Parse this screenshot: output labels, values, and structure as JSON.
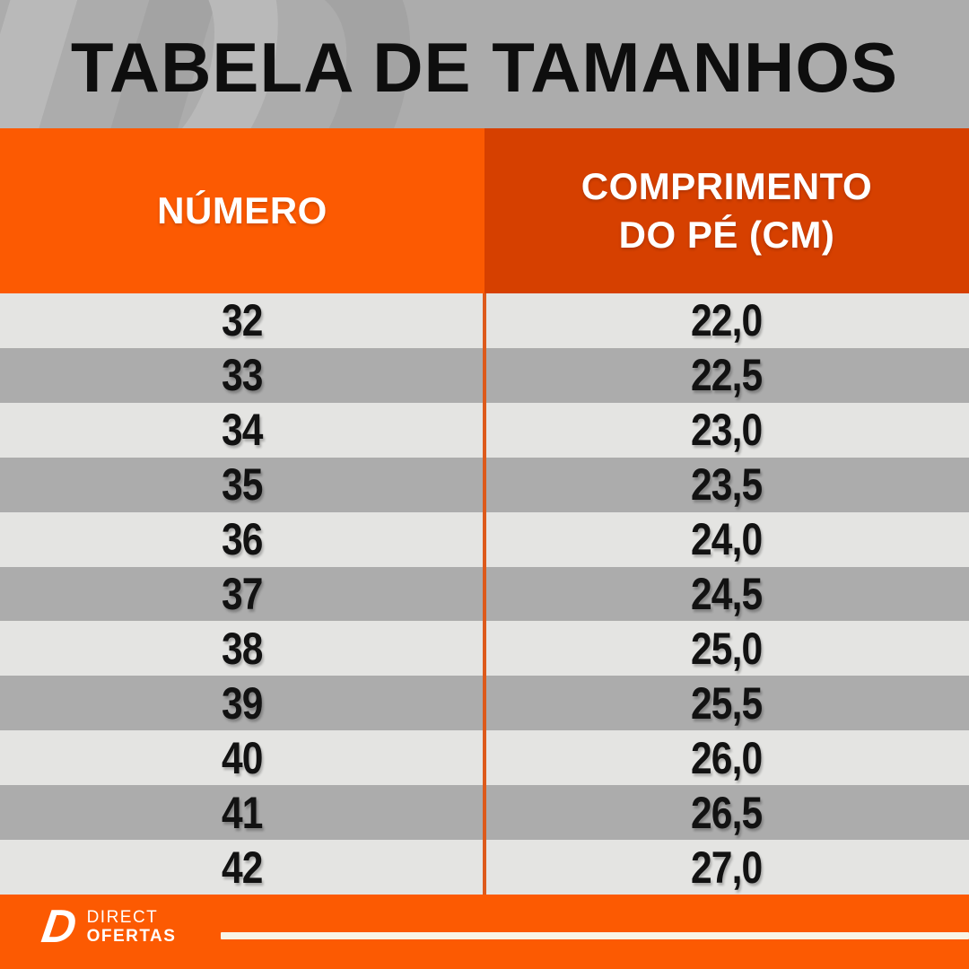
{
  "title": "TABELA DE TAMANHOS",
  "watermark_glyph": "D",
  "header": {
    "col1": "NÚMERO",
    "col2_line1": "COMPRIMENTO",
    "col2_line2": "DO PÉ (CM)"
  },
  "rows": [
    {
      "numero": "32",
      "cm": "22,0"
    },
    {
      "numero": "33",
      "cm": "22,5"
    },
    {
      "numero": "34",
      "cm": "23,0"
    },
    {
      "numero": "35",
      "cm": "23,5"
    },
    {
      "numero": "36",
      "cm": "24,0"
    },
    {
      "numero": "37",
      "cm": "24,5"
    },
    {
      "numero": "38",
      "cm": "25,0"
    },
    {
      "numero": "39",
      "cm": "25,5"
    },
    {
      "numero": "40",
      "cm": "26,0"
    },
    {
      "numero": "41",
      "cm": "26,5"
    },
    {
      "numero": "42",
      "cm": "27,0"
    }
  ],
  "footer": {
    "logo_glyph": "D",
    "brand_top": "DIRECT",
    "brand_bottom": "OFERTAS"
  },
  "colors": {
    "orange_bright": "#FC5A02",
    "orange_dark": "#D64000",
    "row_light": "#E4E4E2",
    "row_dark": "#ACACAC",
    "title_band_bg": "#ACACAC",
    "divider_orange": "#DD5A1B",
    "footer_bar_cream": "#F8F4E6",
    "text_black": "#121212",
    "text_white": "#FFFFFF"
  },
  "chart_data": {
    "type": "table",
    "title": "TABELA DE TAMANHOS",
    "columns": [
      "NÚMERO",
      "COMPRIMENTO DO PÉ (CM)"
    ],
    "rows": [
      [
        "32",
        "22,0"
      ],
      [
        "33",
        "22,5"
      ],
      [
        "34",
        "23,0"
      ],
      [
        "35",
        "23,5"
      ],
      [
        "36",
        "24,0"
      ],
      [
        "37",
        "24,5"
      ],
      [
        "38",
        "25,0"
      ],
      [
        "39",
        "25,5"
      ],
      [
        "40",
        "26,0"
      ],
      [
        "41",
        "26,5"
      ],
      [
        "42",
        "27,0"
      ]
    ]
  }
}
